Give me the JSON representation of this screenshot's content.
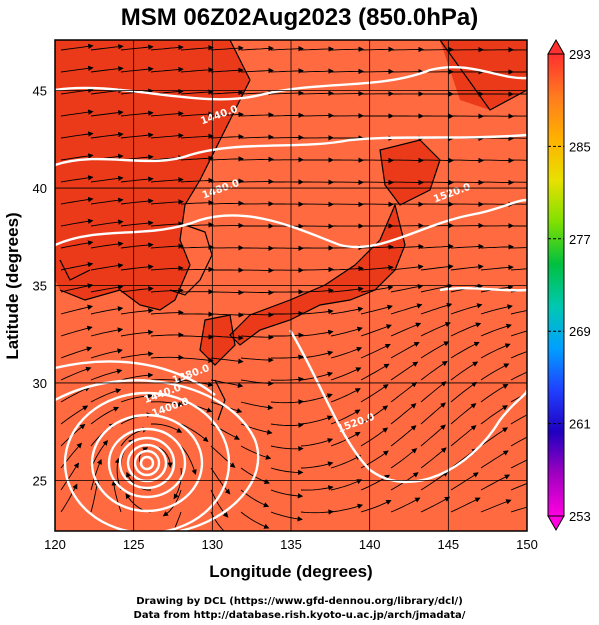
{
  "title": "MSM 06Z02Aug2023 (850.0hPa)",
  "map": {
    "xlabel": "Longitude (degrees)",
    "ylabel": "Latitude  (degrees)",
    "lon_range": [
      120,
      150
    ],
    "lat_range": [
      22.4,
      47.6
    ],
    "lon_ticks": [
      120,
      125,
      130,
      135,
      140,
      145,
      150
    ],
    "lat_ticks": [
      25,
      30,
      35,
      40,
      45
    ],
    "grid": true,
    "background_color": "#ff6a40",
    "land_color": "#ea3a1a",
    "contour_color": "#ffffff",
    "contour_labels": [
      {
        "text": "1440.0",
        "lon": 130.5,
        "lat": 43.6
      },
      {
        "text": "1480.0",
        "lon": 130.6,
        "lat": 39.8
      },
      {
        "text": "1520.0",
        "lon": 145.3,
        "lat": 39.6
      },
      {
        "text": "1380.0",
        "lon": 128.7,
        "lat": 30.3
      },
      {
        "text": "1440.0",
        "lon": 126.9,
        "lat": 29.3
      },
      {
        "text": "1400.0",
        "lon": 127.4,
        "lat": 28.6
      },
      {
        "text": "1520.0",
        "lon": 139.2,
        "lat": 27.8
      }
    ],
    "typhoon_center": {
      "lon": 126.0,
      "lat": 26.2
    }
  },
  "colorbar": {
    "ticks": [
      "293",
      "285",
      "277",
      "269",
      "261",
      "253"
    ],
    "colors": [
      "#ff3030",
      "#ff7a20",
      "#ffb000",
      "#e8e000",
      "#80e000",
      "#00c040",
      "#00c8b0",
      "#00a0ff",
      "#2040ff",
      "#2000c0",
      "#a000c0",
      "#ff00e0"
    ]
  },
  "credits": {
    "line1": "Drawing by DCL (https://www.gfd-dennou.org/library/dcl/)",
    "line2": "Data from http://database.rish.kyoto-u.ac.jp/arch/jmadata/"
  }
}
